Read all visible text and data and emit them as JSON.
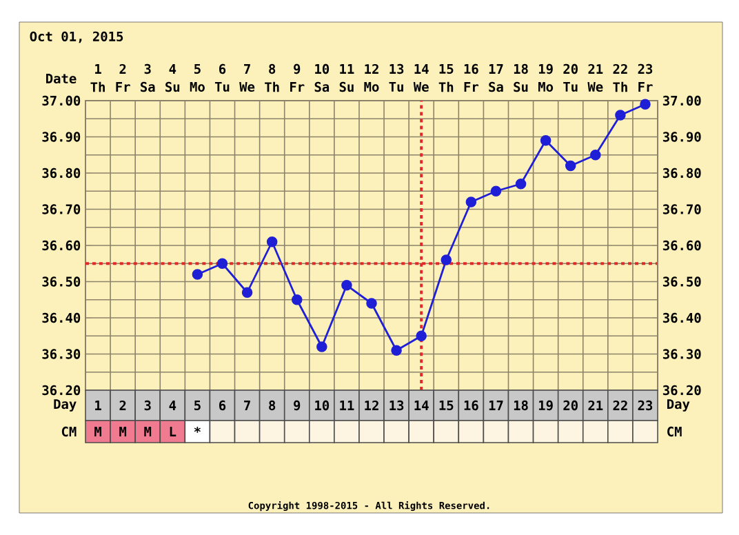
{
  "chart_data": {
    "type": "line",
    "categories": [
      "1",
      "2",
      "3",
      "4",
      "5",
      "6",
      "7",
      "8",
      "9",
      "10",
      "11",
      "12",
      "13",
      "14",
      "15",
      "16",
      "17",
      "18",
      "19",
      "20",
      "21",
      "22",
      "23"
    ],
    "series": [
      {
        "color": "#1f1fd6",
        "values": [
          null,
          null,
          null,
          null,
          36.52,
          36.55,
          36.47,
          36.61,
          36.45,
          36.32,
          36.49,
          36.44,
          36.31,
          36.35,
          36.56,
          36.72,
          36.75,
          36.77,
          36.89,
          36.82,
          36.85,
          36.96,
          36.99
        ]
      }
    ],
    "ylim": [
      36.2,
      37.0
    ],
    "yticks": [
      {
        "value": 36.2,
        "label": "36.20"
      },
      {
        "value": 36.3,
        "label": "36.30"
      },
      {
        "value": 36.4,
        "label": "36.40"
      },
      {
        "value": 36.5,
        "label": "36.50"
      },
      {
        "value": 36.6,
        "label": "36.60"
      },
      {
        "value": 36.7,
        "label": "36.70"
      },
      {
        "value": 36.8,
        "label": "36.80"
      },
      {
        "value": 36.9,
        "label": "36.90"
      },
      {
        "value": 37.0,
        "label": "37.00"
      }
    ],
    "y2lim": [
      36.2,
      37.0
    ],
    "y2ticks": [
      {
        "value": 36.2,
        "label": "36.20"
      },
      {
        "value": 36.3,
        "label": "36.30"
      },
      {
        "value": 36.4,
        "label": "36.40"
      },
      {
        "value": 36.5,
        "label": "36.50"
      },
      {
        "value": 36.6,
        "label": "36.60"
      },
      {
        "value": 36.7,
        "label": "36.70"
      },
      {
        "value": 36.8,
        "label": "36.80"
      },
      {
        "value": 36.9,
        "label": "36.90"
      },
      {
        "value": 37.0,
        "label": "37.00"
      }
    ],
    "ref_lines": [
      {
        "axis": "y",
        "value": 36.55,
        "color": "#e02a2a",
        "line_style": "dotted"
      },
      {
        "axis": "x",
        "value": "14",
        "color": "#e02a2a",
        "line_style": "dotted"
      }
    ],
    "grid": true,
    "marker": "circle",
    "line_style": "solid",
    "annotations": [
      "Oct 01, 2015",
      "Date",
      "Day",
      "CM",
      "Copyright 1998-2015 - All Rights Reserved.",
      "Th",
      "Fr",
      "Sa",
      "Su",
      "Mo",
      "Tu",
      "We",
      "Th",
      "Fr",
      "Sa",
      "Su",
      "Mo",
      "Tu",
      "We",
      "Th",
      "Fr",
      "Sa",
      "Su",
      "Mo",
      "Tu",
      "We",
      "Th",
      "Fr",
      "M",
      "M",
      "M",
      "L",
      "*"
    ]
  }
}
